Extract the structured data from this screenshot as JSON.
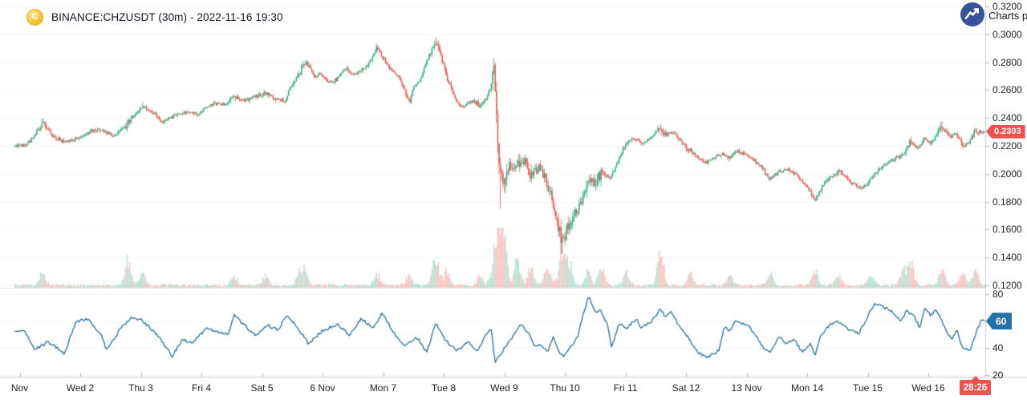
{
  "header": {
    "symbol_title": "BINANCE:CHZUSDT (30m) - 2022-11-16 19:30",
    "coin_letter": "C",
    "attribution": "Charts p"
  },
  "colors": {
    "up": "#2aae81",
    "down": "#ef5350",
    "vol_up": "rgba(42,174,129,0.38)",
    "vol_down": "rgba(239,83,80,0.38)",
    "rsi_line": "#236f9e",
    "rsi_badge": "#2373a4",
    "price_badge": "#f0524f",
    "countdown_badge": "#f0524f",
    "axis_line": "#c7cbd2",
    "tick_mark": "#b0b4bc",
    "grid": "rgba(42,46,57,0.055)",
    "separator": "rgba(42,46,57,0.12)",
    "label_text": "#1d2026",
    "logo_circle": "#37519b",
    "coin_gold": "#f8c436"
  },
  "price_scale": {
    "ticks": [
      {
        "label": "0.3200",
        "value": 0.32
      },
      {
        "label": "0.3000",
        "value": 0.3
      },
      {
        "label": "0.2800",
        "value": 0.28
      },
      {
        "label": "0.2600",
        "value": 0.26
      },
      {
        "label": "0.2400",
        "value": 0.24
      },
      {
        "label": "0.2200",
        "value": 0.22
      },
      {
        "label": "0.2000",
        "value": 0.2
      },
      {
        "label": "0.1800",
        "value": 0.18
      },
      {
        "label": "0.1600",
        "value": 0.16
      },
      {
        "label": "0.1400",
        "value": 0.14
      },
      {
        "label": "0.1200",
        "value": 0.12
      }
    ],
    "last_price_label": "0.2303"
  },
  "rsi_scale": {
    "ticks": [
      {
        "label": "80",
        "value": 80
      },
      {
        "label": "60",
        "value": 60
      },
      {
        "label": "40",
        "value": 40
      },
      {
        "label": "20",
        "value": 20
      }
    ],
    "badge_label": "60",
    "badge_value": 60
  },
  "time_axis": {
    "labels": [
      {
        "label": "Nov",
        "day": 0
      },
      {
        "label": "Wed 2",
        "day": 1
      },
      {
        "label": "Thu 3",
        "day": 2
      },
      {
        "label": "Fri 4",
        "day": 3
      },
      {
        "label": "Sat 5",
        "day": 4
      },
      {
        "label": "6 Nov",
        "day": 5
      },
      {
        "label": "Mon 7",
        "day": 6
      },
      {
        "label": "Tue 8",
        "day": 7
      },
      {
        "label": "Wed 9",
        "day": 8
      },
      {
        "label": "Thu 10",
        "day": 9
      },
      {
        "label": "Fri 11",
        "day": 10
      },
      {
        "label": "Sat 12",
        "day": 11
      },
      {
        "label": "13 Nov",
        "day": 12
      },
      {
        "label": "Mon 14",
        "day": 13
      },
      {
        "label": "Tue 15",
        "day": 14
      },
      {
        "label": "Wed 16",
        "day": 15
      }
    ],
    "countdown": "28:26"
  },
  "chart_data": {
    "type": "candlestick",
    "symbol": "BINANCE:CHZUSDT",
    "interval": "30m",
    "title": "BINANCE:CHZUSDT (30m) - 2022-11-16 19:30",
    "panes": [
      "price+volume",
      "rsi"
    ],
    "last_price": 0.2303,
    "rsi_last": 60,
    "price_range": [
      0.12,
      0.32
    ],
    "rsi_range": [
      20,
      80
    ],
    "x_range_days": [
      -0.09,
      15.94
    ],
    "candle_count": 752,
    "grid": "faint",
    "price_anchors": [
      [
        -0.09,
        0.2195
      ],
      [
        0.14,
        0.2215
      ],
      [
        0.38,
        0.236
      ],
      [
        0.54,
        0.2275
      ],
      [
        0.74,
        0.2225
      ],
      [
        1.0,
        0.2265
      ],
      [
        1.2,
        0.2315
      ],
      [
        1.4,
        0.2305
      ],
      [
        1.56,
        0.2275
      ],
      [
        1.79,
        0.236
      ],
      [
        2.03,
        0.249
      ],
      [
        2.19,
        0.2445
      ],
      [
        2.35,
        0.2375
      ],
      [
        2.52,
        0.241
      ],
      [
        2.72,
        0.2445
      ],
      [
        2.92,
        0.2425
      ],
      [
        3.09,
        0.2475
      ],
      [
        3.22,
        0.2505
      ],
      [
        3.38,
        0.2495
      ],
      [
        3.54,
        0.255
      ],
      [
        3.71,
        0.2525
      ],
      [
        3.89,
        0.2555
      ],
      [
        4.05,
        0.258
      ],
      [
        4.18,
        0.254
      ],
      [
        4.38,
        0.252
      ],
      [
        4.48,
        0.263
      ],
      [
        4.62,
        0.271
      ],
      [
        4.71,
        0.281
      ],
      [
        4.87,
        0.27
      ],
      [
        4.97,
        0.272
      ],
      [
        5.11,
        0.265
      ],
      [
        5.24,
        0.268
      ],
      [
        5.37,
        0.276
      ],
      [
        5.5,
        0.27
      ],
      [
        5.64,
        0.274
      ],
      [
        5.77,
        0.279
      ],
      [
        5.9,
        0.291
      ],
      [
        5.99,
        0.284
      ],
      [
        6.13,
        0.274
      ],
      [
        6.26,
        0.2695
      ],
      [
        6.34,
        0.261
      ],
      [
        6.43,
        0.251
      ],
      [
        6.52,
        0.263
      ],
      [
        6.59,
        0.265
      ],
      [
        6.7,
        0.278
      ],
      [
        6.79,
        0.288
      ],
      [
        6.87,
        0.295
      ],
      [
        6.96,
        0.284
      ],
      [
        7.05,
        0.27
      ],
      [
        7.2,
        0.2525
      ],
      [
        7.33,
        0.2475
      ],
      [
        7.49,
        0.253
      ],
      [
        7.6,
        0.2485
      ],
      [
        7.69,
        0.2535
      ],
      [
        7.78,
        0.262
      ],
      [
        7.83,
        0.274
      ],
      [
        7.89,
        0.228
      ],
      [
        7.94,
        0.196
      ],
      [
        8.0,
        0.1985
      ],
      [
        8.07,
        0.2045
      ],
      [
        8.22,
        0.2075
      ],
      [
        8.35,
        0.21
      ],
      [
        8.44,
        0.198
      ],
      [
        8.58,
        0.2045
      ],
      [
        8.71,
        0.193
      ],
      [
        8.81,
        0.178
      ],
      [
        8.95,
        0.1515
      ],
      [
        9.08,
        0.166
      ],
      [
        9.18,
        0.172
      ],
      [
        9.29,
        0.1815
      ],
      [
        9.38,
        0.1955
      ],
      [
        9.48,
        0.193
      ],
      [
        9.61,
        0.2015
      ],
      [
        9.74,
        0.196
      ],
      [
        9.87,
        0.208
      ],
      [
        10.01,
        0.2225
      ],
      [
        10.14,
        0.226
      ],
      [
        10.27,
        0.2215
      ],
      [
        10.43,
        0.227
      ],
      [
        10.58,
        0.2335
      ],
      [
        10.67,
        0.228
      ],
      [
        10.8,
        0.23
      ],
      [
        10.93,
        0.222
      ],
      [
        11.07,
        0.2165
      ],
      [
        11.2,
        0.211
      ],
      [
        11.33,
        0.208
      ],
      [
        11.46,
        0.2115
      ],
      [
        11.6,
        0.214
      ],
      [
        11.73,
        0.2115
      ],
      [
        11.86,
        0.216
      ],
      [
        11.99,
        0.2135
      ],
      [
        12.13,
        0.2095
      ],
      [
        12.26,
        0.204
      ],
      [
        12.39,
        0.196
      ],
      [
        12.52,
        0.2005
      ],
      [
        12.65,
        0.2035
      ],
      [
        12.79,
        0.2005
      ],
      [
        12.92,
        0.195
      ],
      [
        13.05,
        0.187
      ],
      [
        13.13,
        0.1805
      ],
      [
        13.25,
        0.191
      ],
      [
        13.38,
        0.198
      ],
      [
        13.52,
        0.202
      ],
      [
        13.65,
        0.197
      ],
      [
        13.78,
        0.192
      ],
      [
        13.91,
        0.1895
      ],
      [
        14.05,
        0.196
      ],
      [
        14.18,
        0.2035
      ],
      [
        14.31,
        0.207
      ],
      [
        14.44,
        0.2105
      ],
      [
        14.58,
        0.214
      ],
      [
        14.71,
        0.2245
      ],
      [
        14.84,
        0.218
      ],
      [
        14.94,
        0.226
      ],
      [
        15.04,
        0.222
      ],
      [
        15.13,
        0.2275
      ],
      [
        15.22,
        0.2335
      ],
      [
        15.37,
        0.226
      ],
      [
        15.46,
        0.229
      ],
      [
        15.57,
        0.2205
      ],
      [
        15.67,
        0.2225
      ],
      [
        15.77,
        0.2303
      ]
    ],
    "wick_events": [
      {
        "d": 0.38,
        "high": 0.2395
      },
      {
        "d": 2.03,
        "high": 0.2515
      },
      {
        "d": 5.9,
        "high": 0.2925
      },
      {
        "d": 6.87,
        "high": 0.298
      },
      {
        "d": 7.83,
        "high": 0.277
      },
      {
        "d": 7.94,
        "low": 0.175
      },
      {
        "d": 8.95,
        "low": 0.1425
      },
      {
        "d": 15.22,
        "high": 0.2375
      }
    ],
    "volume_spikes": [
      [
        0.38,
        0.3
      ],
      [
        1.79,
        0.55
      ],
      [
        2.03,
        0.25
      ],
      [
        3.54,
        0.2
      ],
      [
        4.05,
        0.22
      ],
      [
        4.62,
        0.28
      ],
      [
        4.71,
        0.3
      ],
      [
        5.9,
        0.25
      ],
      [
        6.43,
        0.22
      ],
      [
        6.87,
        0.65
      ],
      [
        7.05,
        0.3
      ],
      [
        7.6,
        0.22
      ],
      [
        7.83,
        0.5
      ],
      [
        7.91,
        1.0
      ],
      [
        8.0,
        0.85
      ],
      [
        8.22,
        0.55
      ],
      [
        8.44,
        0.4
      ],
      [
        8.71,
        0.35
      ],
      [
        8.95,
        0.8
      ],
      [
        9.08,
        0.5
      ],
      [
        9.38,
        0.35
      ],
      [
        9.61,
        0.4
      ],
      [
        10.01,
        0.3
      ],
      [
        10.58,
        0.9
      ],
      [
        11.07,
        0.25
      ],
      [
        11.73,
        0.2
      ],
      [
        12.39,
        0.28
      ],
      [
        13.13,
        0.35
      ],
      [
        13.52,
        0.22
      ],
      [
        14.05,
        0.2
      ],
      [
        14.58,
        0.3
      ],
      [
        14.71,
        0.5
      ],
      [
        15.22,
        0.35
      ],
      [
        15.57,
        0.28
      ],
      [
        15.77,
        0.3
      ]
    ],
    "rsi_anchors": [
      [
        -0.09,
        52
      ],
      [
        0.07,
        53
      ],
      [
        0.25,
        39
      ],
      [
        0.47,
        45
      ],
      [
        0.6,
        41
      ],
      [
        0.74,
        36
      ],
      [
        0.93,
        60
      ],
      [
        1.13,
        61
      ],
      [
        1.36,
        49
      ],
      [
        1.44,
        38
      ],
      [
        1.66,
        54
      ],
      [
        1.83,
        62
      ],
      [
        2.02,
        61
      ],
      [
        2.32,
        47
      ],
      [
        2.52,
        34
      ],
      [
        2.68,
        46
      ],
      [
        2.85,
        44
      ],
      [
        3.09,
        55
      ],
      [
        3.25,
        52
      ],
      [
        3.45,
        50
      ],
      [
        3.54,
        65
      ],
      [
        3.78,
        54
      ],
      [
        3.91,
        49
      ],
      [
        4.09,
        57
      ],
      [
        4.27,
        53
      ],
      [
        4.4,
        64
      ],
      [
        4.58,
        56
      ],
      [
        4.77,
        43
      ],
      [
        4.97,
        52
      ],
      [
        5.24,
        58
      ],
      [
        5.44,
        50
      ],
      [
        5.64,
        62
      ],
      [
        5.83,
        55
      ],
      [
        5.99,
        66
      ],
      [
        6.16,
        52
      ],
      [
        6.36,
        42
      ],
      [
        6.56,
        48
      ],
      [
        6.72,
        37
      ],
      [
        6.87,
        58
      ],
      [
        7.02,
        46
      ],
      [
        7.22,
        38
      ],
      [
        7.4,
        45
      ],
      [
        7.56,
        37
      ],
      [
        7.69,
        50
      ],
      [
        7.78,
        55
      ],
      [
        7.85,
        30
      ],
      [
        7.91,
        34
      ],
      [
        8.02,
        41
      ],
      [
        8.28,
        58
      ],
      [
        8.42,
        50
      ],
      [
        8.51,
        41
      ],
      [
        8.59,
        43
      ],
      [
        8.71,
        37
      ],
      [
        8.81,
        49
      ],
      [
        8.91,
        36
      ],
      [
        8.99,
        34
      ],
      [
        9.08,
        40
      ],
      [
        9.21,
        48
      ],
      [
        9.3,
        65
      ],
      [
        9.39,
        78
      ],
      [
        9.45,
        73
      ],
      [
        9.51,
        67
      ],
      [
        9.58,
        69
      ],
      [
        9.7,
        58
      ],
      [
        9.77,
        40
      ],
      [
        9.9,
        59
      ],
      [
        10.01,
        55
      ],
      [
        10.18,
        61
      ],
      [
        10.27,
        55
      ],
      [
        10.43,
        60
      ],
      [
        10.57,
        69
      ],
      [
        10.67,
        63
      ],
      [
        10.76,
        67
      ],
      [
        10.84,
        60
      ],
      [
        10.93,
        53
      ],
      [
        11.03,
        49
      ],
      [
        11.11,
        42
      ],
      [
        11.2,
        37
      ],
      [
        11.33,
        33
      ],
      [
        11.46,
        36
      ],
      [
        11.55,
        39
      ],
      [
        11.63,
        56
      ],
      [
        11.73,
        53
      ],
      [
        11.82,
        61
      ],
      [
        11.9,
        58
      ],
      [
        11.99,
        58
      ],
      [
        12.09,
        53
      ],
      [
        12.16,
        49
      ],
      [
        12.3,
        39
      ],
      [
        12.39,
        36
      ],
      [
        12.52,
        48
      ],
      [
        12.65,
        44
      ],
      [
        12.79,
        46
      ],
      [
        12.92,
        37
      ],
      [
        13.05,
        43
      ],
      [
        13.13,
        35
      ],
      [
        13.22,
        49
      ],
      [
        13.32,
        55
      ],
      [
        13.45,
        60
      ],
      [
        13.58,
        58
      ],
      [
        13.71,
        53
      ],
      [
        13.85,
        51
      ],
      [
        13.98,
        62
      ],
      [
        14.11,
        73
      ],
      [
        14.24,
        71
      ],
      [
        14.38,
        68
      ],
      [
        14.55,
        60
      ],
      [
        14.64,
        68
      ],
      [
        14.77,
        63
      ],
      [
        14.86,
        55
      ],
      [
        14.94,
        70
      ],
      [
        15.04,
        64
      ],
      [
        15.13,
        69
      ],
      [
        15.26,
        56
      ],
      [
        15.39,
        46
      ],
      [
        15.47,
        54
      ],
      [
        15.56,
        40
      ],
      [
        15.7,
        39
      ],
      [
        15.8,
        53
      ],
      [
        15.87,
        60
      ]
    ]
  }
}
